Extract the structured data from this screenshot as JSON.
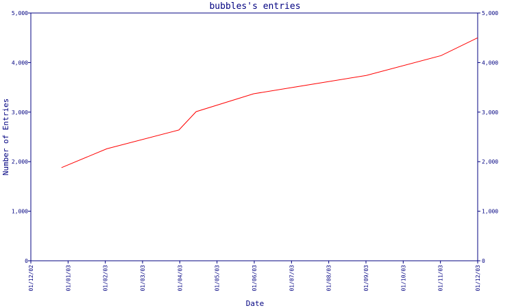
{
  "chart_data": {
    "type": "line",
    "title": "bubbles's entries",
    "xlabel": "Date",
    "ylabel": "Number of Entries",
    "x_ticks": [
      "01/12/02",
      "01/01/03",
      "01/02/03",
      "01/03/03",
      "01/04/03",
      "01/05/03",
      "01/06/03",
      "01/07/03",
      "01/08/03",
      "01/09/03",
      "01/10/03",
      "01/11/03",
      "01/12/03"
    ],
    "y_ticks": [
      "0",
      "1,000",
      "2,000",
      "3,000",
      "4,000",
      "5,000"
    ],
    "y_tick_values": [
      0,
      1000,
      2000,
      3000,
      4000,
      5000
    ],
    "ylim": [
      0,
      5000
    ],
    "xlim": [
      "2002-12-01",
      "2003-12-01"
    ],
    "grid": false,
    "series": [
      {
        "color": "#ff0000",
        "points": [
          {
            "x": "2002-12-26",
            "y": 1880
          },
          {
            "x": "2003-02-01",
            "y": 2260
          },
          {
            "x": "2003-04-01",
            "y": 2640
          },
          {
            "x": "2003-04-15",
            "y": 3010
          },
          {
            "x": "2003-06-01",
            "y": 3370
          },
          {
            "x": "2003-07-01",
            "y": 3490
          },
          {
            "x": "2003-09-01",
            "y": 3740
          },
          {
            "x": "2003-11-01",
            "y": 4140
          },
          {
            "x": "2003-12-01",
            "y": 4500
          }
        ]
      }
    ],
    "colors": {
      "axis": "#000080",
      "line": "#ff0000"
    }
  }
}
